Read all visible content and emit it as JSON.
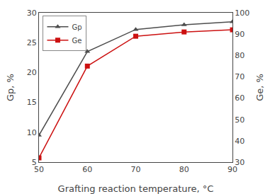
{
  "chart_data": {
    "type": "line",
    "x": [
      50,
      60,
      70,
      80,
      90
    ],
    "xlabel": "Grafting reaction temperature, °C",
    "ylabel": "Gp, %",
    "y2label": "Ge, %",
    "xlim": [
      50,
      90
    ],
    "xticks": [
      50,
      60,
      70,
      80,
      90
    ],
    "ylim": [
      5,
      30
    ],
    "yticks": [
      5,
      10,
      15,
      20,
      25,
      30
    ],
    "y2lim": [
      30,
      100
    ],
    "y2ticks": [
      30,
      40,
      50,
      60,
      70,
      80,
      90,
      100
    ],
    "grid": false,
    "legend": "upper left",
    "series": [
      {
        "name": "Gp",
        "color": "#4d4d4d",
        "marker": "triangle",
        "values": [
          9.5,
          23.5,
          27.2,
          28.0,
          28.5
        ]
      },
      {
        "name": "Ge",
        "color": "#cc1111",
        "marker": "square",
        "axis": "y2",
        "values": [
          32.0,
          75.0,
          89.0,
          91.0,
          92.0
        ]
      }
    ]
  }
}
